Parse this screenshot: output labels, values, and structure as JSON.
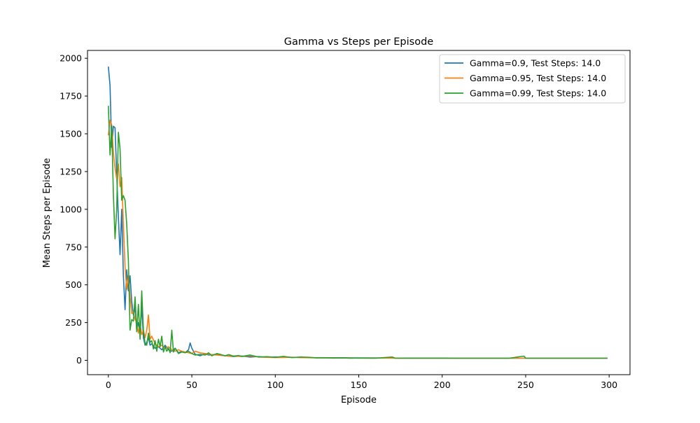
{
  "chart_data": {
    "type": "line",
    "title": "Gamma vs Steps per Episode",
    "xlabel": "Episode",
    "ylabel": "Mean Steps per Episode",
    "xlim": [
      -12.5,
      312.5
    ],
    "ylim": [
      -95,
      2052
    ],
    "xticks": [
      0,
      50,
      100,
      150,
      200,
      250,
      300
    ],
    "yticks": [
      0,
      250,
      500,
      750,
      1000,
      1250,
      1500,
      1750,
      2000
    ],
    "grid": false,
    "legend_position": "top-right",
    "series": [
      {
        "name": "Gamma=0.9, Test Steps: 14.0",
        "color": "#1f77b4",
        "points": [
          [
            0,
            1945
          ],
          [
            1,
            1820
          ],
          [
            2,
            1410
          ],
          [
            3,
            1550
          ],
          [
            4,
            1540
          ],
          [
            5,
            1230
          ],
          [
            6,
            950
          ],
          [
            7,
            700
          ],
          [
            8,
            1000
          ],
          [
            9,
            560
          ],
          [
            10,
            335
          ],
          [
            11,
            600
          ],
          [
            12,
            460
          ],
          [
            13,
            560
          ],
          [
            14,
            390
          ],
          [
            15,
            300
          ],
          [
            16,
            350
          ],
          [
            17,
            200
          ],
          [
            18,
            250
          ],
          [
            19,
            180
          ],
          [
            20,
            360
          ],
          [
            21,
            150
          ],
          [
            22,
            100
          ],
          [
            23,
            120
          ],
          [
            24,
            150
          ],
          [
            25,
            100
          ],
          [
            26,
            110
          ],
          [
            28,
            80
          ],
          [
            30,
            90
          ],
          [
            32,
            70
          ],
          [
            34,
            100
          ],
          [
            36,
            70
          ],
          [
            38,
            60
          ],
          [
            40,
            80
          ],
          [
            42,
            50
          ],
          [
            44,
            60
          ],
          [
            46,
            50
          ],
          [
            48,
            70
          ],
          [
            49,
            115
          ],
          [
            50,
            80
          ],
          [
            52,
            40
          ],
          [
            55,
            30
          ],
          [
            58,
            45
          ],
          [
            60,
            35
          ],
          [
            65,
            40
          ],
          [
            70,
            30
          ],
          [
            75,
            25
          ],
          [
            80,
            28
          ],
          [
            85,
            22
          ],
          [
            90,
            25
          ],
          [
            95,
            20
          ],
          [
            100,
            22
          ],
          [
            110,
            20
          ],
          [
            120,
            18
          ],
          [
            130,
            17
          ],
          [
            140,
            17
          ],
          [
            150,
            16
          ],
          [
            160,
            16
          ],
          [
            170,
            15
          ],
          [
            180,
            15
          ],
          [
            190,
            15
          ],
          [
            200,
            15
          ],
          [
            210,
            14
          ],
          [
            220,
            14
          ],
          [
            230,
            14
          ],
          [
            240,
            14
          ],
          [
            250,
            14
          ],
          [
            260,
            14
          ],
          [
            270,
            14
          ],
          [
            280,
            14
          ],
          [
            290,
            14
          ],
          [
            299,
            14
          ]
        ]
      },
      {
        "name": "Gamma=0.95, Test Steps: 14.0",
        "color": "#ff7f0e",
        "points": [
          [
            0,
            1490
          ],
          [
            1,
            1590
          ],
          [
            2,
            1560
          ],
          [
            3,
            1380
          ],
          [
            4,
            1270
          ],
          [
            5,
            1200
          ],
          [
            6,
            1300
          ],
          [
            7,
            1150
          ],
          [
            8,
            1210
          ],
          [
            9,
            900
          ],
          [
            10,
            620
          ],
          [
            11,
            470
          ],
          [
            12,
            560
          ],
          [
            13,
            420
          ],
          [
            14,
            310
          ],
          [
            15,
            320
          ],
          [
            16,
            270
          ],
          [
            17,
            250
          ],
          [
            18,
            180
          ],
          [
            19,
            240
          ],
          [
            20,
            170
          ],
          [
            21,
            200
          ],
          [
            22,
            150
          ],
          [
            23,
            200
          ],
          [
            24,
            300
          ],
          [
            25,
            140
          ],
          [
            26,
            160
          ],
          [
            28,
            110
          ],
          [
            30,
            90
          ],
          [
            32,
            100
          ],
          [
            34,
            80
          ],
          [
            36,
            90
          ],
          [
            38,
            70
          ],
          [
            40,
            60
          ],
          [
            42,
            70
          ],
          [
            44,
            60
          ],
          [
            46,
            55
          ],
          [
            48,
            50
          ],
          [
            50,
            45
          ],
          [
            52,
            60
          ],
          [
            55,
            50
          ],
          [
            58,
            45
          ],
          [
            60,
            40
          ],
          [
            65,
            35
          ],
          [
            70,
            30
          ],
          [
            75,
            28
          ],
          [
            80,
            25
          ],
          [
            85,
            30
          ],
          [
            90,
            22
          ],
          [
            95,
            20
          ],
          [
            100,
            18
          ],
          [
            110,
            20
          ],
          [
            120,
            17
          ],
          [
            130,
            16
          ],
          [
            140,
            16
          ],
          [
            150,
            15
          ],
          [
            160,
            15
          ],
          [
            170,
            15
          ],
          [
            180,
            14
          ],
          [
            190,
            14
          ],
          [
            200,
            14
          ],
          [
            210,
            14
          ],
          [
            220,
            14
          ],
          [
            230,
            14
          ],
          [
            240,
            14
          ],
          [
            250,
            14
          ],
          [
            260,
            14
          ],
          [
            270,
            14
          ],
          [
            280,
            14
          ],
          [
            290,
            14
          ],
          [
            299,
            14
          ]
        ]
      },
      {
        "name": "Gamma=0.99, Test Steps: 14.0",
        "color": "#2ca02c",
        "points": [
          [
            0,
            1685
          ],
          [
            1,
            1360
          ],
          [
            2,
            1550
          ],
          [
            3,
            1100
          ],
          [
            4,
            805
          ],
          [
            5,
            1000
          ],
          [
            6,
            1510
          ],
          [
            7,
            1400
          ],
          [
            8,
            1060
          ],
          [
            9,
            1090
          ],
          [
            10,
            1060
          ],
          [
            11,
            900
          ],
          [
            12,
            660
          ],
          [
            13,
            200
          ],
          [
            14,
            270
          ],
          [
            15,
            260
          ],
          [
            16,
            420
          ],
          [
            17,
            190
          ],
          [
            18,
            370
          ],
          [
            19,
            140
          ],
          [
            20,
            460
          ],
          [
            21,
            200
          ],
          [
            22,
            110
          ],
          [
            23,
            100
          ],
          [
            24,
            180
          ],
          [
            25,
            120
          ],
          [
            26,
            130
          ],
          [
            27,
            75
          ],
          [
            28,
            130
          ],
          [
            29,
            60
          ],
          [
            30,
            140
          ],
          [
            31,
            90
          ],
          [
            32,
            160
          ],
          [
            33,
            55
          ],
          [
            34,
            90
          ],
          [
            35,
            60
          ],
          [
            36,
            80
          ],
          [
            37,
            50
          ],
          [
            38,
            200
          ],
          [
            39,
            55
          ],
          [
            40,
            80
          ],
          [
            42,
            45
          ],
          [
            44,
            55
          ],
          [
            46,
            50
          ],
          [
            48,
            60
          ],
          [
            50,
            45
          ],
          [
            52,
            35
          ],
          [
            55,
            40
          ],
          [
            58,
            35
          ],
          [
            60,
            50
          ],
          [
            62,
            30
          ],
          [
            65,
            45
          ],
          [
            70,
            30
          ],
          [
            72,
            38
          ],
          [
            75,
            28
          ],
          [
            78,
            32
          ],
          [
            80,
            26
          ],
          [
            85,
            35
          ],
          [
            90,
            22
          ],
          [
            95,
            24
          ],
          [
            100,
            20
          ],
          [
            105,
            26
          ],
          [
            110,
            18
          ],
          [
            115,
            22
          ],
          [
            120,
            20
          ],
          [
            125,
            16
          ],
          [
            130,
            17
          ],
          [
            135,
            15
          ],
          [
            140,
            16
          ],
          [
            145,
            14
          ],
          [
            150,
            15
          ],
          [
            160,
            14
          ],
          [
            170,
            22
          ],
          [
            172,
            14
          ],
          [
            180,
            14
          ],
          [
            190,
            14
          ],
          [
            200,
            14
          ],
          [
            210,
            14
          ],
          [
            220,
            14
          ],
          [
            230,
            14
          ],
          [
            240,
            14
          ],
          [
            249,
            28
          ],
          [
            250,
            14
          ],
          [
            260,
            14
          ],
          [
            270,
            14
          ],
          [
            280,
            14
          ],
          [
            290,
            14
          ],
          [
            299,
            14
          ]
        ]
      }
    ]
  }
}
